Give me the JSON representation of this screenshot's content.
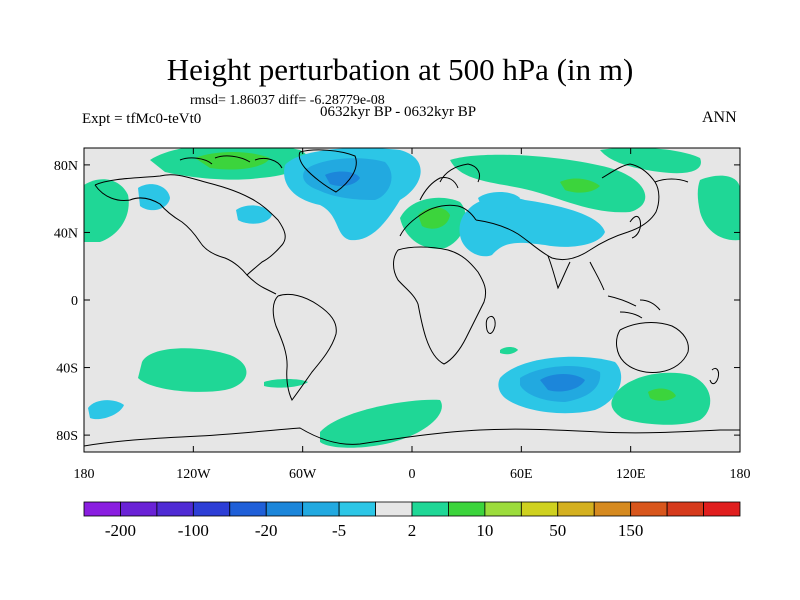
{
  "title": "Height perturbation at 500 hPa (in m)",
  "stats": "rmsd= 1.86037 diff= -6.28779e-08",
  "left_label": "Expt = tfMc0-teVt0",
  "center_label": "0632kyr BP - 0632kyr BP",
  "right_label": "ANN",
  "lat_ticks": [
    {
      "label": "80N",
      "lat": 80
    },
    {
      "label": "40N",
      "lat": 40
    },
    {
      "label": "0",
      "lat": 0
    },
    {
      "label": "40S",
      "lat": -40
    },
    {
      "label": "80S",
      "lat": -80
    }
  ],
  "lon_ticks": [
    {
      "label": "180",
      "lon": -180
    },
    {
      "label": "120W",
      "lon": -120
    },
    {
      "label": "60W",
      "lon": -60
    },
    {
      "label": "0",
      "lon": 0
    },
    {
      "label": "60E",
      "lon": 60
    },
    {
      "label": "120E",
      "lon": 120
    },
    {
      "label": "180",
      "lon": 180
    }
  ],
  "colorbar": {
    "colors": [
      "#8a1ee0",
      "#6a22d6",
      "#4f2bd4",
      "#2d3ed6",
      "#1f5fd8",
      "#1c86da",
      "#22a9e0",
      "#2cc6e6",
      "#e6e6e6",
      "#1fd796",
      "#3cd43c",
      "#9cdc3c",
      "#cfd11f",
      "#d4b01f",
      "#d68a1f",
      "#d8561c",
      "#d63a1c",
      "#e01e1e"
    ],
    "labels": [
      {
        "text": "-200",
        "boundary": 1
      },
      {
        "text": "-100",
        "boundary": 3
      },
      {
        "text": "-20",
        "boundary": 5
      },
      {
        "text": "-5",
        "boundary": 7
      },
      {
        "text": "2",
        "boundary": 9
      },
      {
        "text": "10",
        "boundary": 11
      },
      {
        "text": "50",
        "boundary": 13
      },
      {
        "text": "150",
        "boundary": 15
      }
    ]
  },
  "colors": {
    "land_ocean_bg": "#e6e6e6",
    "pos_light": "#1fd796",
    "pos_mid": "#3cd43c",
    "pos_strong": "#9cdc3c",
    "neg_light": "#2cc6e6",
    "neg_mid": "#22a9e0",
    "neg_strong": "#1c86da"
  },
  "contour_regions": [
    {
      "name": "north-atlantic-low",
      "sign": "neg",
      "level": 2,
      "lon": -30,
      "lat": 60
    },
    {
      "name": "canada-high",
      "sign": "pos",
      "level": 2,
      "lon": -100,
      "lat": 72
    },
    {
      "name": "europe-high",
      "sign": "pos",
      "level": 2,
      "lon": 10,
      "lat": 40
    },
    {
      "name": "siberia-high",
      "sign": "pos",
      "level": 2,
      "lon": 80,
      "lat": 58
    },
    {
      "name": "central-asia-low",
      "sign": "neg",
      "level": 1,
      "lon": 50,
      "lat": 38
    },
    {
      "name": "indian-ocean-low",
      "sign": "neg",
      "level": 3,
      "lon": 90,
      "lat": -55
    },
    {
      "name": "s-pacific-high",
      "sign": "pos",
      "level": 1,
      "lon": -140,
      "lat": -45
    },
    {
      "name": "australia-south-high",
      "sign": "pos",
      "level": 2,
      "lon": 135,
      "lat": -58
    },
    {
      "name": "antarctic-high",
      "sign": "pos",
      "level": 1,
      "lon": -10,
      "lat": -75
    }
  ]
}
